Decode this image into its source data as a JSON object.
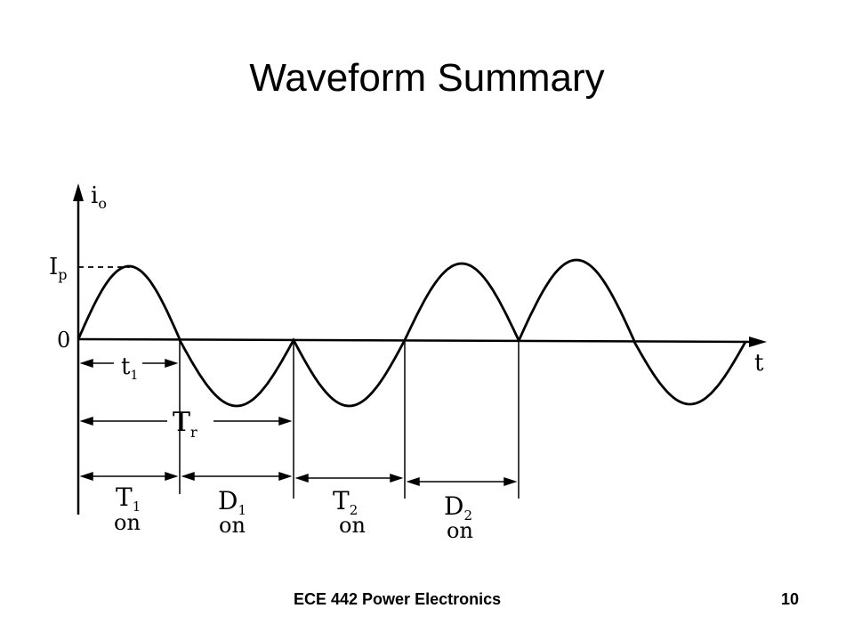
{
  "slide": {
    "title": "Waveform Summary"
  },
  "diagram": {
    "y_axis_label": "i",
    "y_axis_label_sub": "o",
    "x_axis_label": "t",
    "peak_label": "I",
    "peak_label_sub": "p",
    "zero_label": "0",
    "t1_label": "t",
    "t1_label_sub": "1",
    "tr_label": "T",
    "tr_label_sub": "r",
    "intervals": [
      {
        "device": "T",
        "sub": "1",
        "state": "on"
      },
      {
        "device": "D",
        "sub": "1",
        "state": "on"
      },
      {
        "device": "T",
        "sub": "2",
        "state": "on"
      },
      {
        "device": "D",
        "sub": "2",
        "state": "on"
      }
    ]
  },
  "footer": {
    "course": "ECE 442 Power Electronics",
    "page_number": "10"
  }
}
